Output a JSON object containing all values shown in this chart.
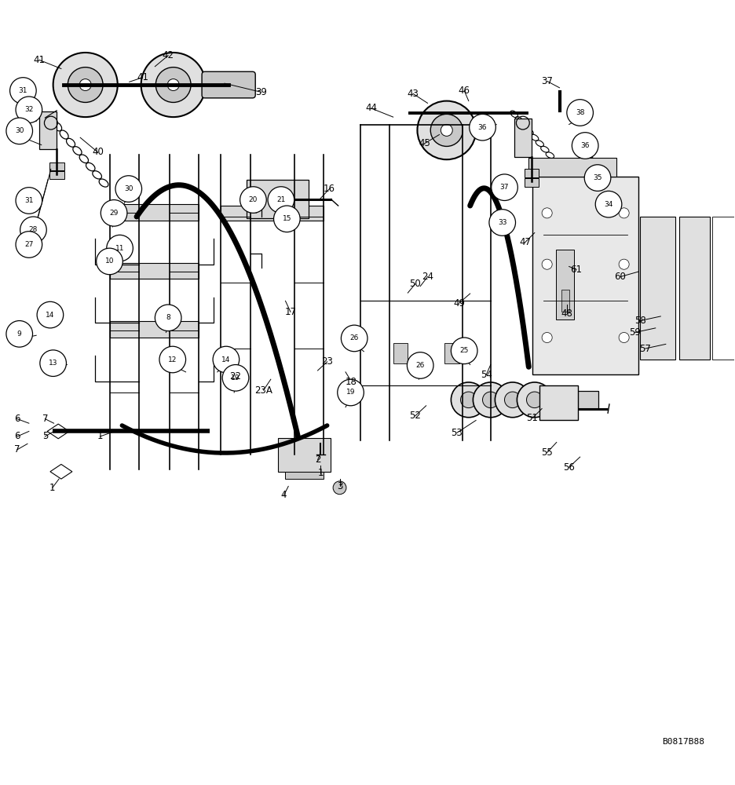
{
  "background_color": "#ffffff",
  "image_code": "B0817B88"
}
